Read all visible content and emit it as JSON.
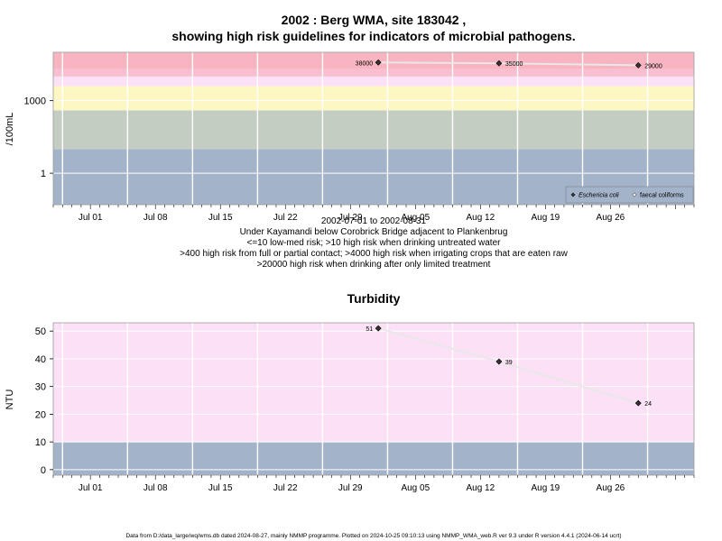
{
  "header": {
    "title_line1": "2002 : Berg WMA, site 183042 ,",
    "title_line2": "showing high risk guidelines for indicators of microbial pathogens."
  },
  "x_ticks": [
    "Jul 01",
    "Jul 08",
    "Jul 15",
    "Jul 22",
    "Jul 29",
    "Aug 05",
    "Aug 12",
    "Aug 19",
    "Aug 26"
  ],
  "subtitle": {
    "lines": [
      "2002-07-01 to 2002-08-31",
      "Under Kayamandi below Corobrick Bridge adjacent to Plankenbrug",
      "<=10 low-med risk; >10 high risk when drinking untreated water",
      ">400 high risk from full or partial contact; >4000 high risk when irrigating crops that are eaten raw",
      ">20000 high risk when drinking after only limited treatment"
    ]
  },
  "footer": "Data from D:/data_large/wq/wms.db dated 2024-08-27, mainly NMMP programme. Plotted on 2024-10-25 09:10:13 using NMMP_WMA_web.R ver 9.3 under R version 4.4.1 (2024-06-14 ucrt)",
  "colors": {
    "band_low": "#a3b4ca",
    "band_grey": "#c4cdc2",
    "band_yellow": "#fdf7c4",
    "band_pink_light": "#fce0f6",
    "band_pink": "#f8bfd0",
    "band_red": "#f8b4c0",
    "line": "#e8e8e8",
    "marker": "#333333"
  },
  "chart_data": [
    {
      "type": "scatter",
      "title": "",
      "ylabel": "/100mL",
      "yscale": "log",
      "ylim": [
        0.05,
        100000
      ],
      "yticks": [
        {
          "value": 1,
          "label": "1"
        },
        {
          "value": 1000,
          "label": "1000"
        }
      ],
      "xlim": [
        "2002-06-27",
        "2002-09-04"
      ],
      "legend": {
        "position": "bottom-right",
        "entries": [
          {
            "label": "Eschericia coli",
            "marker": "filled-diamond",
            "italic": true
          },
          {
            "label": "faecal coliforms",
            "marker": "open-diamond",
            "italic": false
          }
        ]
      },
      "bands": [
        {
          "from": 0.05,
          "to": 10,
          "color": "band_low"
        },
        {
          "from": 10,
          "to": 400,
          "color": "band_grey"
        },
        {
          "from": 400,
          "to": 4000,
          "color": "band_yellow"
        },
        {
          "from": 4000,
          "to": 10000,
          "color": "band_pink_light"
        },
        {
          "from": 10000,
          "to": 20000,
          "color": "band_pink"
        },
        {
          "from": 20000,
          "to": 100000,
          "color": "band_red"
        }
      ],
      "series": [
        {
          "x": [
            "2002-08-01",
            "2002-08-14",
            "2002-08-29"
          ],
          "y": [
            38000,
            35000,
            29000
          ],
          "labels": [
            "38000",
            "35000",
            "29000"
          ],
          "label_side": [
            "left",
            "right",
            "right"
          ]
        }
      ],
      "grid": true
    },
    {
      "type": "scatter",
      "title": "Turbidity",
      "ylabel": "NTU",
      "yscale": "linear",
      "ylim": [
        -2,
        53
      ],
      "yticks": [
        {
          "value": 0,
          "label": "0"
        },
        {
          "value": 10,
          "label": "10"
        },
        {
          "value": 20,
          "label": "20"
        },
        {
          "value": 30,
          "label": "30"
        },
        {
          "value": 40,
          "label": "40"
        },
        {
          "value": 50,
          "label": "50"
        }
      ],
      "xlim": [
        "2002-06-27",
        "2002-09-04"
      ],
      "bands": [
        {
          "from": -2,
          "to": 10,
          "color": "band_low"
        },
        {
          "from": 10,
          "to": 53,
          "color": "band_pink_light"
        }
      ],
      "series": [
        {
          "x": [
            "2002-08-01",
            "2002-08-14",
            "2002-08-29"
          ],
          "y": [
            51,
            39,
            24
          ],
          "labels": [
            "51",
            "39",
            "24"
          ],
          "label_side": [
            "left",
            "right",
            "right"
          ]
        }
      ],
      "grid": true
    }
  ]
}
